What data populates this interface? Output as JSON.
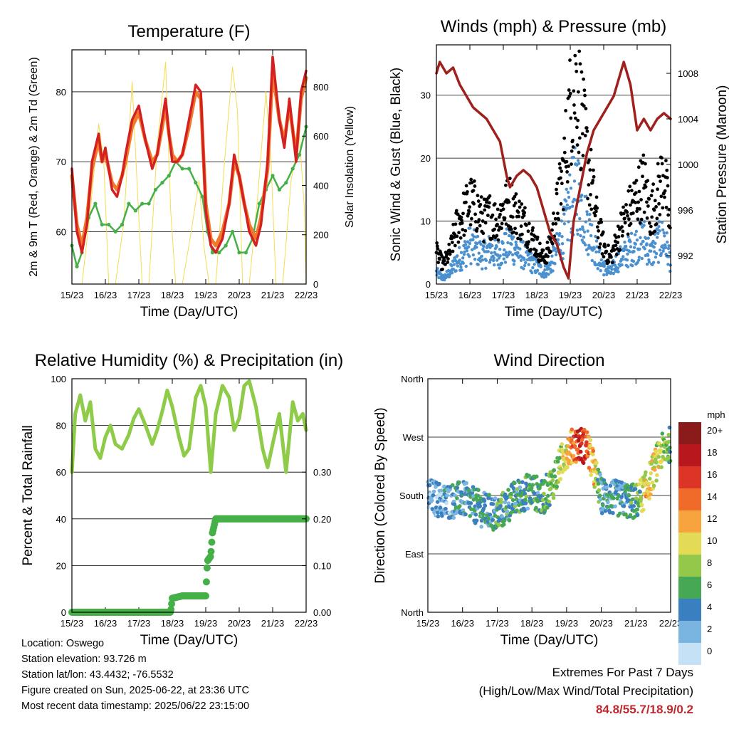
{
  "x_ticks": [
    "15/23",
    "16/23",
    "17/23",
    "18/23",
    "19/23",
    "20/23",
    "21/23",
    "22/23"
  ],
  "x_label": "Time (Day/UTC)",
  "colors": {
    "t2m": "#d42020",
    "t9m": "#f07a2a",
    "td": "#46b048",
    "solar": "#f5dc50",
    "wind": "#4a90cf",
    "gust": "#000000",
    "pressure": "#a0201e",
    "rh": "#8ecb48",
    "precip": "#46b048",
    "extremes": "#c0282d"
  },
  "info": {
    "location": "Location: Oswego",
    "elevation": "Station elevation: 93.726 m",
    "latlon": "Station lat/lon: 43.4432; -76.5532",
    "created": "Figure created on Sun, 2025-06-22, at 23:36 UTC",
    "recent": "Most recent data timestamp: 2025/06/22 23:15:00"
  },
  "extremes": {
    "title": "Extremes For Past 7 Days",
    "subtitle": "(High/Low/Max Wind/Total Precipitation)",
    "values": "84.8/55.7/18.9/0.2"
  },
  "chart_data": [
    {
      "type": "line",
      "title": "Temperature (F)",
      "xlabel": "Time (Day/UTC)",
      "ylabel": "2m & 9m T (Red, Orange) & 2m Td (Green)",
      "ylabel_right": "Solar Insolation (Yellow)",
      "xlim": [
        0,
        7
      ],
      "ylim": [
        52.5,
        86
      ],
      "ylim_right": [
        0,
        950
      ],
      "yticks": [
        60,
        70,
        80
      ],
      "yticks_right": [
        0,
        200,
        400,
        600,
        800
      ],
      "grid": true,
      "series": [
        {
          "key": "t2m",
          "x": [
            0,
            0.15,
            0.3,
            0.45,
            0.6,
            0.8,
            0.9,
            1.0,
            1.2,
            1.35,
            1.5,
            1.6,
            1.8,
            2.0,
            2.2,
            2.4,
            2.55,
            2.7,
            2.8,
            2.9,
            3.0,
            3.15,
            3.3,
            3.5,
            3.7,
            3.85,
            4.0,
            4.15,
            4.3,
            4.5,
            4.7,
            4.85,
            5.0,
            5.15,
            5.3,
            5.5,
            5.65,
            5.85,
            6.0,
            6.2,
            6.35,
            6.5,
            6.7,
            6.85,
            7.0
          ],
          "y": [
            69,
            60,
            57,
            61,
            70,
            74,
            70,
            72,
            66,
            65,
            68,
            71,
            76,
            78,
            73,
            69,
            71,
            76,
            79,
            74,
            70,
            70,
            71,
            76,
            81,
            80,
            63,
            58,
            57,
            59,
            64,
            71,
            68,
            64,
            60,
            58,
            61,
            70,
            85,
            76,
            72,
            79,
            70,
            80,
            83
          ]
        },
        {
          "key": "t9m",
          "x": [
            0,
            0.15,
            0.3,
            0.45,
            0.6,
            0.8,
            0.9,
            1.0,
            1.2,
            1.35,
            1.5,
            1.6,
            1.8,
            2.0,
            2.2,
            2.4,
            2.55,
            2.7,
            2.8,
            2.9,
            3.0,
            3.15,
            3.3,
            3.5,
            3.7,
            3.85,
            4.0,
            4.15,
            4.3,
            4.5,
            4.7,
            4.85,
            5.0,
            5.15,
            5.3,
            5.5,
            5.65,
            5.85,
            6.0,
            6.2,
            6.35,
            6.5,
            6.7,
            6.85,
            7.0
          ],
          "y": [
            68,
            61,
            58,
            62,
            69,
            73,
            70,
            71,
            67,
            66,
            68,
            70,
            75,
            77,
            73,
            70,
            71,
            75,
            78,
            74,
            71,
            70,
            71,
            75,
            80,
            79,
            64,
            59,
            58,
            60,
            64,
            70,
            68,
            64,
            61,
            59,
            62,
            69,
            83,
            76,
            73,
            78,
            71,
            79,
            82
          ]
        },
        {
          "key": "td",
          "x": [
            0,
            0.15,
            0.3,
            0.5,
            0.7,
            0.9,
            1.1,
            1.3,
            1.5,
            1.7,
            1.9,
            2.1,
            2.3,
            2.5,
            2.7,
            2.9,
            3.1,
            3.3,
            3.5,
            3.7,
            3.9,
            4.05,
            4.2,
            4.4,
            4.6,
            4.8,
            5.0,
            5.2,
            5.4,
            5.6,
            5.8,
            6.0,
            6.2,
            6.4,
            6.6,
            6.8,
            7.0
          ],
          "y": [
            58,
            55,
            57,
            62,
            64,
            61,
            61,
            60,
            61,
            64,
            63,
            64,
            64,
            66,
            67,
            68,
            70,
            69,
            69,
            67,
            65,
            60,
            57,
            57,
            58,
            60,
            57,
            57,
            59,
            64,
            66,
            68,
            66,
            67,
            69,
            71,
            75
          ]
        },
        {
          "key": "solar",
          "x": [
            0,
            0.3,
            0.55,
            0.8,
            0.95,
            1.1,
            1.3,
            1.55,
            1.8,
            1.95,
            2.1,
            2.3,
            2.55,
            2.8,
            2.95,
            3.1,
            3.3,
            3.55,
            3.8,
            3.95,
            4.1,
            4.3,
            4.55,
            4.8,
            4.95,
            5.1,
            5.3,
            5.55,
            5.8,
            5.95,
            6.1,
            6.3,
            6.55,
            6.8,
            6.95,
            7.0
          ],
          "y": [
            0,
            0,
            300,
            650,
            500,
            0,
            0,
            250,
            820,
            400,
            0,
            0,
            560,
            900,
            300,
            0,
            0,
            200,
            420,
            150,
            0,
            0,
            480,
            880,
            700,
            0,
            0,
            350,
            780,
            500,
            0,
            0,
            420,
            600,
            300,
            0
          ]
        }
      ]
    },
    {
      "type": "line",
      "title": "Winds (mph) & Pressure (mb)",
      "xlabel": "Time (Day/UTC)",
      "ylabel": "Sonic Wind & Gust (Blue, Black)",
      "ylabel_right": "Station Pressure (Maroon)",
      "xlim": [
        0,
        7
      ],
      "ylim": [
        0,
        38
      ],
      "ylim_right": [
        989.5,
        1010.5
      ],
      "yticks": [
        0,
        10,
        20,
        30
      ],
      "yticks_right": [
        992,
        996,
        1000,
        1004,
        1008
      ],
      "grid": true,
      "series": [
        {
          "key": "pressure",
          "x": [
            0,
            0.1,
            0.3,
            0.5,
            0.7,
            0.9,
            1.1,
            1.3,
            1.5,
            1.7,
            1.9,
            2.1,
            2.2,
            2.4,
            2.6,
            2.8,
            3.0,
            3.2,
            3.4,
            3.6,
            3.8,
            3.95,
            4.1,
            4.3,
            4.5,
            4.7,
            4.9,
            5.1,
            5.3,
            5.5,
            5.6,
            5.8,
            6.0,
            6.2,
            6.4,
            6.6,
            6.8,
            7.0
          ],
          "y": [
            1008,
            1009,
            1008,
            1008.5,
            1007,
            1006,
            1005,
            1004.5,
            1004,
            1003,
            1002,
            999,
            998,
            999,
            999.5,
            999,
            998,
            996,
            994,
            993,
            991,
            990,
            995,
            998,
            1001,
            1003,
            1004,
            1005,
            1006,
            1008,
            1009,
            1007,
            1003,
            1004,
            1003,
            1004,
            1004.5,
            1004
          ]
        },
        {
          "key": "wind",
          "x": [
            0,
            0.2,
            0.4,
            0.6,
            0.8,
            1.0,
            1.2,
            1.4,
            1.6,
            1.8,
            2.0,
            2.2,
            2.4,
            2.6,
            2.8,
            3.0,
            3.2,
            3.4,
            3.6,
            3.8,
            4.0,
            4.2,
            4.4,
            4.6,
            4.8,
            5.0,
            5.2,
            5.4,
            5.6,
            5.8,
            6.0,
            6.2,
            6.4,
            6.6,
            6.8,
            7.0
          ],
          "y": [
            2,
            1,
            2,
            4,
            5,
            7,
            6,
            5,
            6,
            5,
            6,
            7,
            6,
            5,
            4,
            3,
            2,
            3,
            6,
            9,
            14,
            17,
            12,
            9,
            5,
            3,
            2,
            4,
            5,
            6,
            7,
            8,
            5,
            7,
            8,
            4
          ]
        },
        {
          "key": "gust",
          "x": [
            0,
            0.2,
            0.4,
            0.6,
            0.8,
            1.0,
            1.2,
            1.4,
            1.6,
            1.8,
            2.0,
            2.2,
            2.4,
            2.6,
            2.8,
            3.0,
            3.2,
            3.4,
            3.6,
            3.8,
            4.0,
            4.2,
            4.4,
            4.6,
            4.8,
            5.0,
            5.2,
            5.4,
            5.6,
            5.8,
            6.0,
            6.2,
            6.4,
            6.6,
            6.8,
            7.0
          ],
          "y": [
            5,
            3,
            5,
            9,
            11,
            13,
            12,
            10,
            11,
            10,
            12,
            13,
            11,
            10,
            8,
            6,
            4,
            6,
            12,
            18,
            28,
            32,
            24,
            17,
            10,
            6,
            4,
            7,
            10,
            12,
            14,
            16,
            11,
            14,
            18,
            8
          ]
        }
      ]
    },
    {
      "type": "line",
      "title": "Relative Humidity (%) & Precipitation (in)",
      "xlabel": "Time (Day/UTC)",
      "ylabel": "Percent & Total Rainfall",
      "xlim": [
        0,
        7
      ],
      "ylim": [
        0,
        100
      ],
      "ylim_right": [
        0,
        0.5
      ],
      "yticks": [
        0,
        20,
        40,
        60,
        80,
        100
      ],
      "yticks_right": [
        "0.00",
        "0.10",
        "0.20",
        "0.30"
      ],
      "grid": true,
      "series": [
        {
          "key": "rh",
          "x": [
            0,
            0.1,
            0.25,
            0.4,
            0.55,
            0.7,
            0.85,
            1.0,
            1.15,
            1.3,
            1.5,
            1.7,
            1.85,
            2.0,
            2.2,
            2.4,
            2.55,
            2.7,
            2.85,
            3.0,
            3.2,
            3.35,
            3.5,
            3.7,
            3.85,
            4.0,
            4.15,
            4.3,
            4.5,
            4.7,
            4.85,
            5.0,
            5.15,
            5.3,
            5.5,
            5.7,
            5.85,
            6.0,
            6.2,
            6.4,
            6.6,
            6.75,
            6.9,
            7.0
          ],
          "y": [
            60,
            85,
            93,
            82,
            90,
            70,
            66,
            75,
            80,
            72,
            70,
            76,
            83,
            87,
            80,
            72,
            78,
            86,
            95,
            88,
            75,
            67,
            70,
            92,
            97,
            88,
            60,
            85,
            97,
            92,
            78,
            83,
            97,
            99,
            88,
            70,
            62,
            72,
            85,
            60,
            90,
            82,
            85,
            78
          ]
        },
        {
          "key": "precip",
          "x": [
            0,
            1.0,
            2.0,
            2.95,
            3.0,
            3.3,
            4.0,
            4.05,
            4.15,
            4.2,
            4.3,
            5.0,
            6.0,
            7.0
          ],
          "y": [
            0,
            0,
            0,
            0,
            0.03,
            0.035,
            0.035,
            0.11,
            0.12,
            0.17,
            0.2,
            0.2,
            0.2,
            0.2
          ]
        }
      ]
    },
    {
      "type": "scatter",
      "title": "Wind Direction",
      "xlabel": "Time (Day/UTC)",
      "ylabel": "Direction (Colored By Speed)",
      "xlim": [
        0,
        7
      ],
      "ylim": [
        0,
        360
      ],
      "ytick_labels": [
        "North",
        "East",
        "South",
        "West",
        "North"
      ],
      "grid": true,
      "legend": {
        "title": "mph",
        "labels": [
          "20+",
          "18",
          "16",
          "14",
          "12",
          "10",
          "8",
          "6",
          "4",
          "2",
          "0"
        ],
        "colors": [
          "#8b1a1a",
          "#b8181d",
          "#dc3426",
          "#f06a2a",
          "#f7a43e",
          "#e3db55",
          "#94c84a",
          "#46a855",
          "#3a7fc0",
          "#7ab4e0",
          "#c4e1f5"
        ]
      }
    }
  ]
}
